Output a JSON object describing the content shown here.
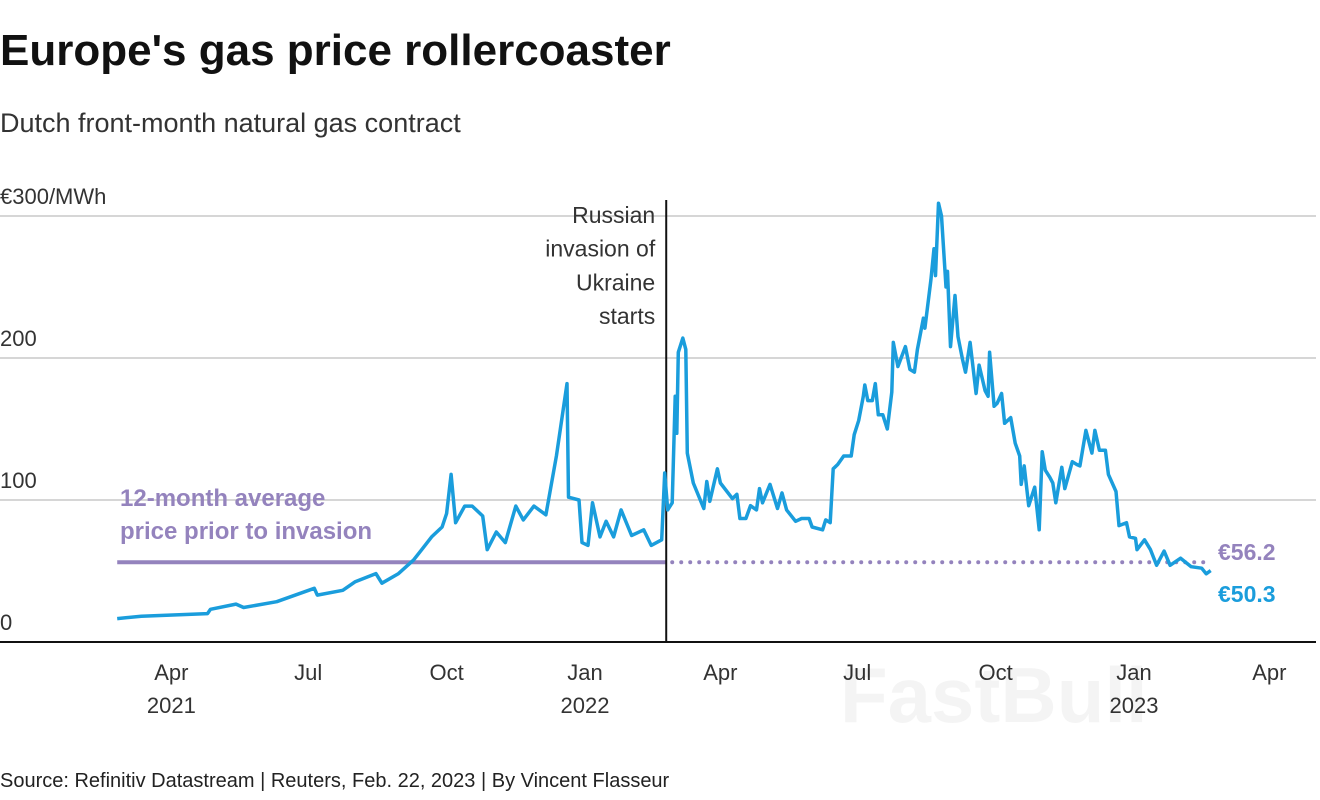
{
  "title": "Europe's gas price rollercoaster",
  "subtitle": "Dutch front-month natural gas contract",
  "source": "Source: Refinitiv Datastream | Reuters, Feb. 22, 2023 | By Vincent Flasseur",
  "watermark": "FastBull",
  "colors": {
    "series": "#1a9ddc",
    "average": "#9483bd",
    "grid": "#c8c8c8",
    "axis": "#111111"
  },
  "chart_data": {
    "type": "line",
    "title": "Europe's gas price rollercoaster",
    "subtitle": "Dutch front-month natural gas contract",
    "ylabel": "€300/MWh",
    "ylim": [
      0,
      300
    ],
    "yticks": [
      {
        "value": 0,
        "label": "0"
      },
      {
        "value": 100,
        "label": "100"
      },
      {
        "value": 200,
        "label": "200"
      },
      {
        "value": 300,
        "label": "€300/MWh"
      }
    ],
    "xlim": [
      "2021-02-01",
      "2023-04-15"
    ],
    "xticks": [
      {
        "date": "2021-04-01",
        "label": "Apr",
        "year": "2021"
      },
      {
        "date": "2021-07-01",
        "label": "Jul",
        "year": ""
      },
      {
        "date": "2021-10-01",
        "label": "Oct",
        "year": ""
      },
      {
        "date": "2022-01-01",
        "label": "Jan",
        "year": "2022"
      },
      {
        "date": "2022-04-01",
        "label": "Apr",
        "year": ""
      },
      {
        "date": "2022-07-01",
        "label": "Jul",
        "year": ""
      },
      {
        "date": "2022-10-01",
        "label": "Oct",
        "year": ""
      },
      {
        "date": "2023-01-01",
        "label": "Jan",
        "year": "2023"
      },
      {
        "date": "2023-04-01",
        "label": "Apr",
        "year": ""
      }
    ],
    "grid": true,
    "series": [
      {
        "points": [
          [
            "2021-02-24",
            16.5
          ],
          [
            "2021-03-12",
            18.2
          ],
          [
            "2021-04-25",
            20
          ],
          [
            "2021-04-27",
            23
          ],
          [
            "2021-05-14",
            26.7
          ],
          [
            "2021-05-19",
            24.3
          ],
          [
            "2021-06-10",
            28.4
          ],
          [
            "2021-07-05",
            37.8
          ],
          [
            "2021-07-07",
            33
          ],
          [
            "2021-07-24",
            36.4
          ],
          [
            "2021-08-01",
            42.3
          ],
          [
            "2021-08-15",
            48.2
          ],
          [
            "2021-08-19",
            41.4
          ],
          [
            "2021-08-30",
            48.2
          ],
          [
            "2021-09-09",
            57.7
          ],
          [
            "2021-09-14",
            64.5
          ],
          [
            "2021-09-21",
            74
          ],
          [
            "2021-09-28",
            81
          ],
          [
            "2021-10-01",
            90.5
          ],
          [
            "2021-10-04",
            118
          ],
          [
            "2021-10-07",
            84
          ],
          [
            "2021-10-13",
            95.7
          ],
          [
            "2021-10-18",
            95.7
          ],
          [
            "2021-10-25",
            88.7
          ],
          [
            "2021-10-28",
            65
          ],
          [
            "2021-11-03",
            77.5
          ],
          [
            "2021-11-09",
            70
          ],
          [
            "2021-11-16",
            95.7
          ],
          [
            "2021-11-21",
            86
          ],
          [
            "2021-11-28",
            95.7
          ],
          [
            "2021-12-06",
            89.6
          ],
          [
            "2021-12-13",
            131
          ],
          [
            "2021-12-20",
            182
          ],
          [
            "2021-12-21",
            102
          ],
          [
            "2021-12-28",
            100
          ],
          [
            "2021-12-30",
            70
          ],
          [
            "2022-01-03",
            68
          ],
          [
            "2022-01-06",
            98
          ],
          [
            "2022-01-11",
            74
          ],
          [
            "2022-01-15",
            85
          ],
          [
            "2022-01-20",
            74
          ],
          [
            "2022-01-25",
            93
          ],
          [
            "2022-02-01",
            75
          ],
          [
            "2022-02-09",
            79
          ],
          [
            "2022-02-14",
            68
          ],
          [
            "2022-02-21",
            72
          ],
          [
            "2022-02-23",
            119
          ],
          [
            "2022-02-25",
            93
          ],
          [
            "2022-02-28",
            98
          ],
          [
            "2022-03-02",
            173
          ],
          [
            "2022-03-03",
            147
          ],
          [
            "2022-03-04",
            204
          ],
          [
            "2022-03-07",
            214
          ],
          [
            "2022-03-09",
            206
          ],
          [
            "2022-03-10",
            133
          ],
          [
            "2022-03-14",
            112
          ],
          [
            "2022-03-21",
            94
          ],
          [
            "2022-03-23",
            113
          ],
          [
            "2022-03-25",
            99
          ],
          [
            "2022-03-30",
            122
          ],
          [
            "2022-04-01",
            112
          ],
          [
            "2022-04-09",
            101
          ],
          [
            "2022-04-12",
            104
          ],
          [
            "2022-04-14",
            87
          ],
          [
            "2022-04-18",
            87
          ],
          [
            "2022-04-21",
            96
          ],
          [
            "2022-04-25",
            93
          ],
          [
            "2022-04-27",
            108
          ],
          [
            "2022-04-29",
            98
          ],
          [
            "2022-05-04",
            111
          ],
          [
            "2022-05-09",
            94
          ],
          [
            "2022-05-12",
            105
          ],
          [
            "2022-05-15",
            93
          ],
          [
            "2022-05-21",
            85
          ],
          [
            "2022-05-25",
            87
          ],
          [
            "2022-05-30",
            87
          ],
          [
            "2022-06-01",
            81
          ],
          [
            "2022-06-08",
            79
          ],
          [
            "2022-06-10",
            86
          ],
          [
            "2022-06-13",
            84
          ],
          [
            "2022-06-15",
            122
          ],
          [
            "2022-06-18",
            125
          ],
          [
            "2022-06-22",
            131
          ],
          [
            "2022-06-27",
            131
          ],
          [
            "2022-06-29",
            146
          ],
          [
            "2022-07-02",
            156
          ],
          [
            "2022-07-05",
            173
          ],
          [
            "2022-07-06",
            181
          ],
          [
            "2022-07-08",
            170
          ],
          [
            "2022-07-11",
            170
          ],
          [
            "2022-07-13",
            182
          ],
          [
            "2022-07-15",
            160
          ],
          [
            "2022-07-18",
            160
          ],
          [
            "2022-07-21",
            150
          ],
          [
            "2022-07-24",
            176
          ],
          [
            "2022-07-25",
            211
          ],
          [
            "2022-07-28",
            194
          ],
          [
            "2022-08-02",
            208
          ],
          [
            "2022-08-05",
            192
          ],
          [
            "2022-08-08",
            190
          ],
          [
            "2022-08-10",
            206
          ],
          [
            "2022-08-14",
            228
          ],
          [
            "2022-08-15",
            221
          ],
          [
            "2022-08-19",
            255
          ],
          [
            "2022-08-21",
            277
          ],
          [
            "2022-08-22",
            258
          ],
          [
            "2022-08-24",
            309
          ],
          [
            "2022-08-26",
            300
          ],
          [
            "2022-08-29",
            250
          ],
          [
            "2022-08-30",
            261
          ],
          [
            "2022-09-01",
            208
          ],
          [
            "2022-09-04",
            244
          ],
          [
            "2022-09-06",
            215
          ],
          [
            "2022-09-09",
            199
          ],
          [
            "2022-09-11",
            190
          ],
          [
            "2022-09-14",
            211
          ],
          [
            "2022-09-18",
            175
          ],
          [
            "2022-09-20",
            195
          ],
          [
            "2022-09-24",
            177
          ],
          [
            "2022-09-26",
            173
          ],
          [
            "2022-09-27",
            204
          ],
          [
            "2022-09-30",
            166
          ],
          [
            "2022-10-02",
            168
          ],
          [
            "2022-10-05",
            175
          ],
          [
            "2022-10-07",
            154
          ],
          [
            "2022-10-11",
            158
          ],
          [
            "2022-10-14",
            140
          ],
          [
            "2022-10-17",
            131
          ],
          [
            "2022-10-18",
            111
          ],
          [
            "2022-10-20",
            124
          ],
          [
            "2022-10-23",
            96
          ],
          [
            "2022-10-27",
            109
          ],
          [
            "2022-10-30",
            79
          ],
          [
            "2022-11-01",
            134
          ],
          [
            "2022-11-03",
            121
          ],
          [
            "2022-11-06",
            116
          ],
          [
            "2022-11-08",
            112
          ],
          [
            "2022-11-10",
            98
          ],
          [
            "2022-11-14",
            123
          ],
          [
            "2022-11-16",
            108
          ],
          [
            "2022-11-21",
            127
          ],
          [
            "2022-11-24",
            125
          ],
          [
            "2022-11-26",
            124
          ],
          [
            "2022-11-30",
            149
          ],
          [
            "2022-12-04",
            133
          ],
          [
            "2022-12-06",
            149
          ],
          [
            "2022-12-09",
            135
          ],
          [
            "2022-12-13",
            135
          ],
          [
            "2022-12-15",
            118
          ],
          [
            "2022-12-20",
            106
          ],
          [
            "2022-12-22",
            82
          ],
          [
            "2022-12-27",
            84
          ],
          [
            "2022-12-29",
            74
          ],
          [
            "2023-01-02",
            73
          ],
          [
            "2023-01-03",
            65
          ],
          [
            "2023-01-08",
            72
          ],
          [
            "2023-01-12",
            65
          ],
          [
            "2023-01-16",
            54
          ],
          [
            "2023-01-21",
            64
          ],
          [
            "2023-01-25",
            54
          ],
          [
            "2023-02-01",
            59
          ],
          [
            "2023-02-08",
            53
          ],
          [
            "2023-02-15",
            52
          ],
          [
            "2023-02-18",
            48
          ],
          [
            "2023-02-21",
            50.3
          ]
        ],
        "end_label": "€50.3"
      }
    ],
    "average_line": {
      "value": 56.2,
      "label_lines": [
        "12-month average",
        "price prior to invasion"
      ],
      "end_label": "€56.2",
      "solid_until": "2022-02-24",
      "dotted_until": "2023-02-21"
    },
    "event": {
      "date": "2022-02-24",
      "label_lines": [
        "Russian",
        "invasion of",
        "Ukraine",
        "starts"
      ]
    }
  }
}
